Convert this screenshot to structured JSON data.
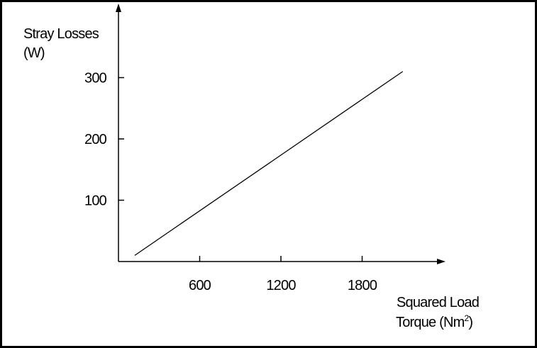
{
  "chart_data": {
    "type": "line",
    "title": "",
    "ylabel_line1": "Stray Losses",
    "ylabel_line2": "(W)",
    "xlabel_line1": "Squared Load",
    "xlabel_line2_base": "Torque (Nm",
    "xlabel_line2_sup": "2",
    "xlabel_line2_close": ")",
    "x_ticks": [
      600,
      1200,
      1800
    ],
    "x_tick_labels": [
      "600",
      "1200",
      "1800"
    ],
    "y_ticks": [
      100,
      200,
      300
    ],
    "y_tick_labels": [
      "100",
      "200",
      "300"
    ],
    "xlim": [
      0,
      2400
    ],
    "ylim": [
      0,
      360
    ],
    "grid": false,
    "series": [
      {
        "x": [
          120,
          2100
        ],
        "y": [
          10,
          310
        ]
      }
    ],
    "colors": {
      "line": "#000000",
      "frame": "#000000",
      "background": "#ffffff"
    }
  }
}
